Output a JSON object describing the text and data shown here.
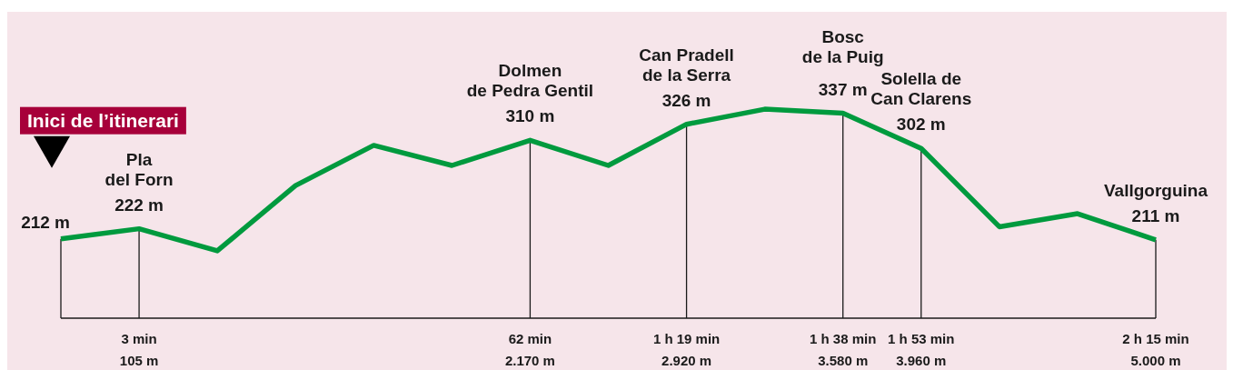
{
  "chart_data": {
    "type": "line",
    "categories": [
      null,
      "3 min\n105 m",
      null,
      null,
      null,
      null,
      "62 min\n2.170 m",
      null,
      "1 h 19 min\n2.920 m",
      null,
      "1 h 38 min\n3.580 m",
      "1 h 53 min\n3.960 m",
      null,
      null,
      "2 h 15 min\n5.000 m"
    ],
    "values": [
      212,
      222,
      200,
      265,
      305,
      285,
      310,
      285,
      326,
      341,
      337,
      302,
      224,
      237,
      211
    ],
    "value_labels": [
      "212 m",
      "222 m",
      null,
      null,
      null,
      null,
      "310 m",
      null,
      "326 m",
      null,
      "337 m",
      "302 m",
      null,
      null,
      "211 m"
    ],
    "color": "#009a3e",
    "ylim": [
      133,
      437
    ],
    "tick_labels": "x",
    "ref_lines": [
      {
        "axis": "x",
        "value": "3 min\n105 m"
      },
      {
        "axis": "x",
        "value": "62 min\n2.170 m"
      },
      {
        "axis": "x",
        "value": "1 h 19 min\n2.920 m"
      },
      {
        "axis": "x",
        "value": "1 h 38 min\n3.580 m"
      },
      {
        "axis": "x",
        "value": "1 h 53 min\n3.960 m"
      },
      {
        "axis": "x",
        "value": "2 h 15 min\n5.000 m"
      }
    ],
    "annotations": [
      "Inici de l’itinerari",
      {
        "text": "Pla\ndel Forn",
        "x": "3 min\n105 m",
        "y": 222
      },
      {
        "text": "Dolmen\nde Pedra Gentil",
        "x": "62 min\n2.170 m",
        "y": 310
      },
      {
        "text": "Can Pradell\nde la Serra",
        "x": "1 h 19 min\n2.920 m",
        "y": 326
      },
      {
        "text": "Bosc\nde la Puig",
        "x": "1 h 38 min\n3.580 m",
        "y": 337
      },
      {
        "text": "Solella de\nCan Clarens",
        "x": "1 h 53 min\n3.960 m",
        "y": 302
      },
      {
        "text": "Vallgorguina",
        "x": "2 h 15 min\n5.000 m",
        "y": 211
      }
    ]
  }
}
